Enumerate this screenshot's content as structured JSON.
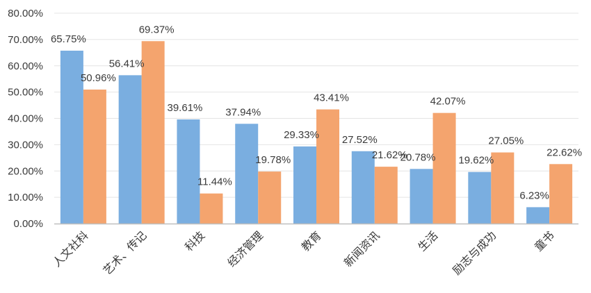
{
  "chart_data": {
    "type": "bar",
    "categories": [
      "人文社科",
      "艺术、传记",
      "科技",
      "经济管理",
      "教育",
      "新闻资讯",
      "生活",
      "励志与成功",
      "童书"
    ],
    "series": [
      {
        "values": [
          65.75,
          56.41,
          39.61,
          37.94,
          29.33,
          27.52,
          20.78,
          19.62,
          6.23
        ],
        "labels": [
          "65.75%",
          "56.41%",
          "39.61%",
          "37.94%",
          "29.33%",
          "27.52%",
          "20.78%",
          "19.62%",
          "6.23%"
        ]
      },
      {
        "values": [
          50.96,
          69.37,
          11.44,
          19.78,
          43.41,
          21.62,
          42.07,
          27.05,
          22.62
        ],
        "labels": [
          "50.96%",
          "69.37%",
          "11.44%",
          "19.78%",
          "43.41%",
          "21.62%",
          "42.07%",
          "27.05%",
          "22.62%"
        ]
      }
    ],
    "ylim": [
      0,
      80
    ],
    "yticks": [
      "0.00%",
      "10.00%",
      "20.00%",
      "30.00%",
      "40.00%",
      "50.00%",
      "60.00%",
      "70.00%",
      "80.00%"
    ],
    "grid": true,
    "colors": [
      "#7aaee0",
      "#f4a46e"
    ]
  }
}
